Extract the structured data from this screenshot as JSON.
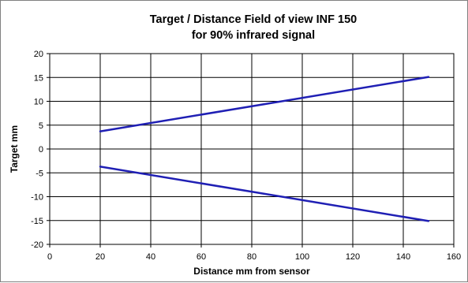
{
  "chart_data": {
    "type": "line",
    "title": [
      "Target / Distance Field of view INF 150",
      "for 90%  infrared signal"
    ],
    "xlabel": "Distance mm  from sensor",
    "ylabel": "Target  mm",
    "xlim": [
      0,
      160
    ],
    "ylim": [
      -20,
      20
    ],
    "x_ticks": [
      0,
      20,
      40,
      60,
      80,
      100,
      120,
      140,
      160
    ],
    "y_ticks": [
      20,
      15,
      10,
      5,
      0,
      -5,
      -10,
      -15,
      -20
    ],
    "grid": true,
    "legend": "none",
    "series": [
      {
        "x": [
          20,
          150
        ],
        "y": [
          3.7,
          15.1
        ],
        "color": "#1f1fb4"
      },
      {
        "x": [
          20,
          150
        ],
        "y": [
          -3.7,
          -15.1
        ],
        "color": "#1f1fb4"
      }
    ]
  }
}
